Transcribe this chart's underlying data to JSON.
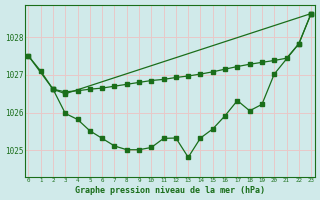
{
  "background_color": "#d0eaea",
  "grid_color": "#e8c8c8",
  "line_color": "#1a6e1a",
  "xlabel": "Graphe pression niveau de la mer (hPa)",
  "ylim": [
    1024.3,
    1028.85
  ],
  "xlim": [
    -0.3,
    23.3
  ],
  "yticks": [
    1025,
    1026,
    1027,
    1028
  ],
  "xticks": [
    0,
    1,
    2,
    3,
    4,
    5,
    6,
    7,
    8,
    9,
    10,
    11,
    12,
    13,
    14,
    15,
    16,
    17,
    18,
    19,
    20,
    21,
    22,
    23
  ],
  "lineA_x": [
    0,
    1,
    2,
    3,
    23
  ],
  "lineA_y": [
    1027.5,
    1027.1,
    1026.62,
    1026.5,
    1028.62
  ],
  "lineB_x": [
    2,
    3,
    4,
    5,
    6,
    7,
    8,
    9,
    10,
    11,
    12,
    13,
    14,
    15,
    16,
    17,
    18,
    19,
    20,
    21,
    22,
    23
  ],
  "lineB_y": [
    1026.62,
    1026.55,
    1026.58,
    1026.62,
    1026.65,
    1026.7,
    1026.75,
    1026.8,
    1026.85,
    1026.88,
    1026.93,
    1026.97,
    1027.02,
    1027.08,
    1027.15,
    1027.22,
    1027.28,
    1027.33,
    1027.38,
    1027.44,
    1027.82,
    1028.62
  ],
  "lineC_x": [
    0,
    2,
    3,
    4,
    5,
    6,
    7,
    8,
    9,
    10,
    11,
    12,
    13,
    14,
    15,
    16,
    17,
    18,
    19,
    20,
    22,
    23
  ],
  "lineC_y": [
    1027.5,
    1026.62,
    1025.98,
    1025.82,
    1025.52,
    1025.32,
    1025.12,
    1025.02,
    1025.02,
    1025.08,
    1025.32,
    1025.33,
    1024.82,
    1025.33,
    1025.57,
    1025.92,
    1026.32,
    1026.05,
    1026.22,
    1027.02,
    1027.82,
    1028.62
  ]
}
